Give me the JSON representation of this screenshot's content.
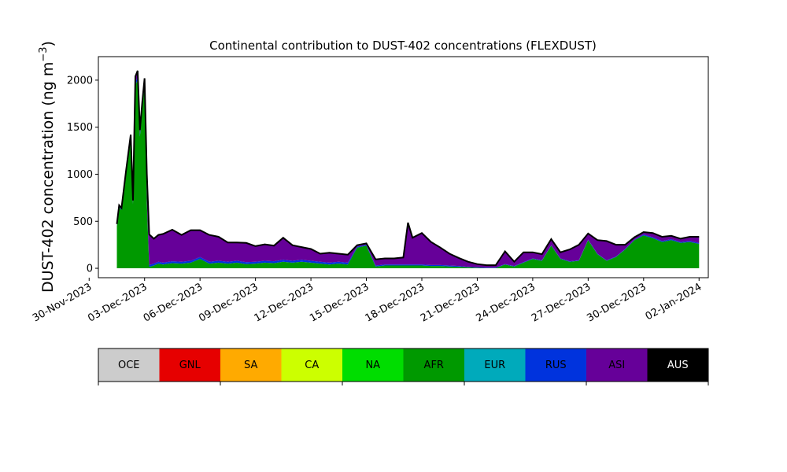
{
  "chart_data": {
    "type": "area",
    "title": "Continental contribution to DUST-402 concentrations (FLEXDUST)",
    "ylabel_main": "DUST-402 concentration (ng m",
    "ylabel_exp": "−3",
    "ylabel_close": ")",
    "ylim": [
      -100,
      2250
    ],
    "yticks": [
      0,
      500,
      1000,
      1500,
      2000
    ],
    "ytick_labels": [
      "0",
      "500",
      "1000",
      "1500",
      "2000"
    ],
    "xlim": [
      "2023-11-30T12:00",
      "2024-01-02T12:00"
    ],
    "xticks": [
      "2023-11-30",
      "2023-12-03",
      "2023-12-06",
      "2023-12-09",
      "2023-12-12",
      "2023-12-15",
      "2023-12-18",
      "2023-12-21",
      "2023-12-24",
      "2023-12-27",
      "2023-12-30",
      "2024-01-02"
    ],
    "xtick_labels": [
      "30-Nov-2023",
      "03-Dec-2023",
      "06-Dec-2023",
      "09-Dec-2023",
      "12-Dec-2023",
      "15-Dec-2023",
      "18-Dec-2023",
      "21-Dec-2023",
      "24-Dec-2023",
      "27-Dec-2023",
      "30-Dec-2023",
      "02-Jan-2024"
    ],
    "x": [
      "2023-12-01T12:00",
      "2023-12-01T15:00",
      "2023-12-01T18:00",
      "2023-12-02T00:00",
      "2023-12-02T06:00",
      "2023-12-02T09:00",
      "2023-12-02T12:00",
      "2023-12-02T15:00",
      "2023-12-02T18:00",
      "2023-12-02T21:00",
      "2023-12-03T00:00",
      "2023-12-03T03:00",
      "2023-12-03T06:00",
      "2023-12-03T12:00",
      "2023-12-03T18:00",
      "2023-12-04T00:00",
      "2023-12-04T12:00",
      "2023-12-05T00:00",
      "2023-12-05T12:00",
      "2023-12-06T00:00",
      "2023-12-06T12:00",
      "2023-12-07T00:00",
      "2023-12-07T12:00",
      "2023-12-08T00:00",
      "2023-12-08T12:00",
      "2023-12-09T00:00",
      "2023-12-09T12:00",
      "2023-12-10T00:00",
      "2023-12-10T12:00",
      "2023-12-11T00:00",
      "2023-12-11T12:00",
      "2023-12-12T00:00",
      "2023-12-12T12:00",
      "2023-12-13T00:00",
      "2023-12-13T12:00",
      "2023-12-14T00:00",
      "2023-12-14T12:00",
      "2023-12-15T00:00",
      "2023-12-15T12:00",
      "2023-12-16T00:00",
      "2023-12-16T12:00",
      "2023-12-17T00:00",
      "2023-12-17T06:00",
      "2023-12-17T12:00",
      "2023-12-18T00:00",
      "2023-12-18T12:00",
      "2023-12-19T00:00",
      "2023-12-19T12:00",
      "2023-12-20T00:00",
      "2023-12-20T12:00",
      "2023-12-21T00:00",
      "2023-12-21T12:00",
      "2023-12-22T00:00",
      "2023-12-22T12:00",
      "2023-12-23T00:00",
      "2023-12-23T12:00",
      "2023-12-24T00:00",
      "2023-12-24T12:00",
      "2023-12-25T00:00",
      "2023-12-25T12:00",
      "2023-12-26T00:00",
      "2023-12-26T12:00",
      "2023-12-27T00:00",
      "2023-12-27T12:00",
      "2023-12-28T00:00",
      "2023-12-28T12:00",
      "2023-12-29T00:00",
      "2023-12-29T12:00",
      "2023-12-30T00:00",
      "2023-12-30T12:00",
      "2023-12-31T00:00",
      "2023-12-31T12:00",
      "2024-01-01T00:00",
      "2024-01-01T12:00",
      "2024-01-02T00:00"
    ],
    "series": [
      {
        "name": "AFR",
        "color": "#009900",
        "values": [
          450,
          650,
          620,
          1000,
          1380,
          680,
          1950,
          2000,
          1400,
          1700,
          1950,
          700,
          15,
          30,
          50,
          40,
          55,
          50,
          60,
          100,
          50,
          60,
          50,
          60,
          45,
          50,
          60,
          55,
          70,
          60,
          70,
          60,
          50,
          40,
          50,
          40,
          220,
          240,
          20,
          30,
          30,
          30,
          30,
          30,
          30,
          25,
          25,
          20,
          15,
          10,
          5,
          3,
          3,
          40,
          20,
          60,
          100,
          80,
          240,
          100,
          70,
          80,
          300,
          150,
          80,
          120,
          200,
          300,
          350,
          320,
          280,
          300,
          270,
          280,
          260
        ]
      },
      {
        "name": "RUS",
        "color": "#0033dd",
        "values": [
          10,
          10,
          10,
          20,
          20,
          20,
          30,
          30,
          30,
          30,
          30,
          20,
          20,
          20,
          20,
          20,
          20,
          20,
          20,
          20,
          20,
          20,
          20,
          20,
          20,
          20,
          20,
          20,
          20,
          20,
          20,
          20,
          20,
          20,
          20,
          20,
          10,
          10,
          10,
          10,
          10,
          10,
          10,
          10,
          10,
          10,
          10,
          10,
          10,
          5,
          5,
          5,
          5,
          5,
          5,
          5,
          5,
          5,
          5,
          5,
          5,
          5,
          5,
          5,
          5,
          5,
          5,
          5,
          10,
          10,
          10,
          10,
          10,
          10,
          10
        ]
      },
      {
        "name": "ASI",
        "color": "#660099",
        "values": [
          10,
          10,
          10,
          20,
          20,
          20,
          60,
          70,
          40,
          40,
          40,
          280,
          320,
          260,
          280,
          300,
          330,
          280,
          320,
          280,
          280,
          250,
          200,
          190,
          200,
          160,
          170,
          160,
          230,
          160,
          130,
          120,
          80,
          100,
          80,
          80,
          10,
          10,
          60,
          60,
          60,
          70,
          440,
          280,
          330,
          240,
          180,
          120,
          80,
          50,
          30,
          20,
          20,
          130,
          40,
          100,
          60,
          60,
          60,
          60,
          120,
          160,
          60,
          140,
          200,
          120,
          40,
          20,
          20,
          40,
          40,
          30,
          30,
          40,
          60
        ]
      },
      {
        "name": "NA",
        "color": "#00dd00",
        "values": [
          0,
          0,
          0,
          0,
          0,
          0,
          0,
          0,
          0,
          0,
          0,
          0,
          5,
          5,
          5,
          5,
          5,
          5,
          5,
          5,
          5,
          5,
          5,
          5,
          5,
          5,
          5,
          5,
          5,
          5,
          5,
          5,
          5,
          5,
          5,
          5,
          5,
          5,
          5,
          5,
          5,
          5,
          5,
          5,
          5,
          5,
          5,
          5,
          5,
          5,
          5,
          5,
          5,
          5,
          5,
          5,
          5,
          5,
          5,
          5,
          5,
          5,
          5,
          5,
          5,
          5,
          5,
          5,
          5,
          5,
          5,
          5,
          5,
          5,
          5
        ]
      }
    ],
    "legend": [
      {
        "label": "OCE",
        "color": "#cccccc",
        "text_color": "#000000"
      },
      {
        "label": "GNL",
        "color": "#e60000",
        "text_color": "#000000"
      },
      {
        "label": "SA",
        "color": "#ffaa00",
        "text_color": "#000000"
      },
      {
        "label": "CA",
        "color": "#ccff00",
        "text_color": "#000000"
      },
      {
        "label": "NA",
        "color": "#00dd00",
        "text_color": "#000000"
      },
      {
        "label": "AFR",
        "color": "#009900",
        "text_color": "#000000"
      },
      {
        "label": "EUR",
        "color": "#00aabb",
        "text_color": "#000000"
      },
      {
        "label": "RUS",
        "color": "#0033dd",
        "text_color": "#000000"
      },
      {
        "label": "ASI",
        "color": "#660099",
        "text_color": "#000000"
      },
      {
        "label": "AUS",
        "color": "#000000",
        "text_color": "#ffffff"
      }
    ],
    "legend_placement": "bottom",
    "grid": false
  }
}
